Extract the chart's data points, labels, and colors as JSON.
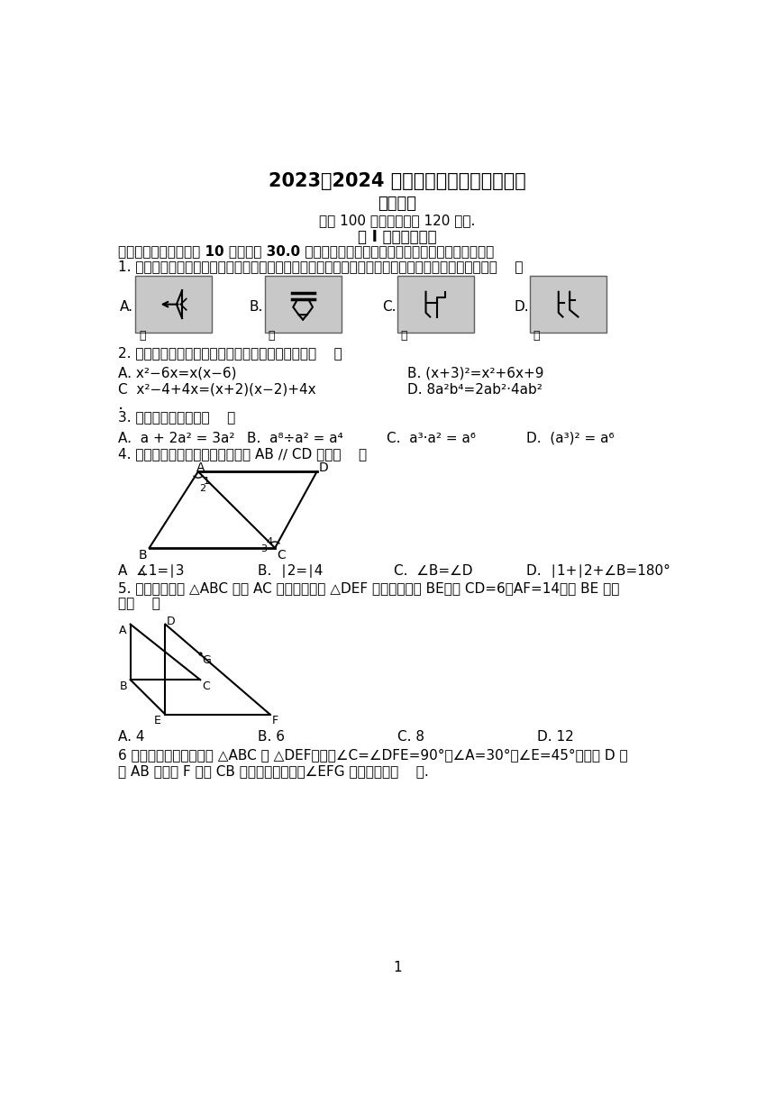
{
  "title1": "2023～2024 学年第二学期期中模拟试卷",
  "title2": "初一数学",
  "subtitle": "满分 100 分，考试时间 120 分钟.",
  "section_title": "第 Ⅰ 卷（选择题）",
  "section1_header": "一、选择题（本大题共 10 小题，共 30.0 分，在每小题列出的选项中，选出符合题目的一项）",
  "q1": "1. 甲骨文是我国的一种古代文字，是汉字的早期形式，下列甲骨文中，能用其中一部分平移得到的是（    ）",
  "q2": "2. 下列等式从左到右的变形中，属于因式分解的是（    ）",
  "q2a": "A. x²−6x=x(x−6)",
  "q2b": "B. (x+3)²=x²+6x+9",
  "q2c": "C  x²−4+4x=(x+2)(x−2)+4x",
  "q2d": "D. 8a²b⁴=2ab²·4ab²",
  "q3": "3. 下列计算正确的是（    ）",
  "q3a": "A.  a + 2a² = 3a²",
  "q3b": "B.  a⁸÷a² = a⁴",
  "q3c": "C.  a³·a² = a⁶",
  "q3d": "D.  (a³)² = a⁶",
  "q4": "4. 如图，下列各组条件中，能得到 AB ∕∕ CD 的是（    ）",
  "q4a": "A  ∡1=∣3",
  "q4b": "B.  ∣2=∣4",
  "q4c": "C.  ∠B=∠D",
  "q4d": "D.  ∣1+∣2+∠B=180°",
  "q5": "5. 如图，将直角 △ABC 沿边 AC 的方向平移到 △DEF 的位置，连接 BE，若 CD=6，AF=14，则 BE 的长",
  "q5line2": "为（    ）",
  "q5a": "A. 4",
  "q5b": "B. 6",
  "q5c": "C. 8",
  "q5d": "D. 12",
  "q6line1": "6 如图是两块直角三角板 △ABC 和 △DEF，其中∠C=∠DFE=90°，∠A=30°，∠E=45°，且点 D 在",
  "q6line2": "边 AB 上，点 F 在边 CB 的延长线上，那么∠EFG 不可能等于（    ）.",
  "page_num": "1",
  "bg_color": "#ffffff",
  "text_color": "#000000",
  "gray_color": "#c8c8c8"
}
